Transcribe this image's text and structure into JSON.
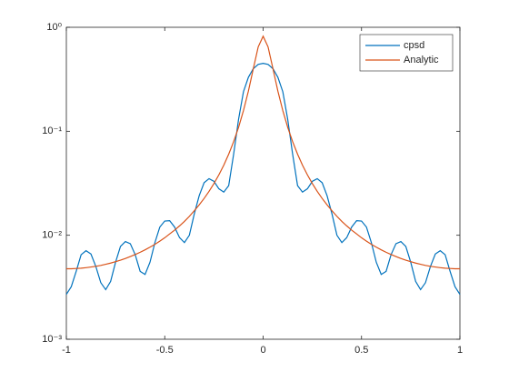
{
  "chart_data": {
    "type": "line",
    "yscale": "log",
    "grid": false,
    "legend": "northeast",
    "x": [
      -1,
      -0.975,
      -0.95,
      -0.925,
      -0.9,
      -0.875,
      -0.85,
      -0.825,
      -0.8,
      -0.775,
      -0.75,
      -0.725,
      -0.7,
      -0.675,
      -0.65,
      -0.625,
      -0.6,
      -0.575,
      -0.55,
      -0.525,
      -0.5,
      -0.475,
      -0.45,
      -0.425,
      -0.4,
      -0.375,
      -0.35,
      -0.325,
      -0.3,
      -0.275,
      -0.25,
      -0.225,
      -0.2,
      -0.175,
      -0.15,
      -0.125,
      -0.1,
      -0.075,
      -0.05,
      -0.025,
      0,
      0.025,
      0.05,
      0.075,
      0.1,
      0.125,
      0.15,
      0.175,
      0.2,
      0.225,
      0.25,
      0.275,
      0.3,
      0.325,
      0.35,
      0.375,
      0.4,
      0.425,
      0.45,
      0.475,
      0.5,
      0.525,
      0.55,
      0.575,
      0.6,
      0.625,
      0.65,
      0.675,
      0.7,
      0.725,
      0.75,
      0.775,
      0.8,
      0.825,
      0.85,
      0.875,
      0.9,
      0.925,
      0.95,
      0.975,
      1
    ],
    "series": [
      {
        "name": "cpsd",
        "color": "#0072bd",
        "values": [
          0.0027,
          0.0032,
          0.0045,
          0.0065,
          0.0071,
          0.0066,
          0.005,
          0.0035,
          0.003,
          0.0036,
          0.0055,
          0.0078,
          0.0087,
          0.0083,
          0.0065,
          0.0045,
          0.0042,
          0.0055,
          0.0085,
          0.012,
          0.0137,
          0.0138,
          0.012,
          0.0095,
          0.0085,
          0.01,
          0.016,
          0.024,
          0.032,
          0.035,
          0.033,
          0.028,
          0.026,
          0.03,
          0.06,
          0.13,
          0.24,
          0.33,
          0.4,
          0.44,
          0.45,
          0.44,
          0.4,
          0.33,
          0.24,
          0.13,
          0.06,
          0.03,
          0.026,
          0.028,
          0.033,
          0.035,
          0.032,
          0.024,
          0.016,
          0.01,
          0.0085,
          0.0095,
          0.012,
          0.0138,
          0.0137,
          0.012,
          0.0085,
          0.0055,
          0.0042,
          0.0045,
          0.0065,
          0.0083,
          0.0087,
          0.0078,
          0.0055,
          0.0036,
          0.003,
          0.0035,
          0.005,
          0.0066,
          0.0071,
          0.0065,
          0.0045,
          0.0032,
          0.0027
        ]
      },
      {
        "name": "Analytic",
        "color": "#d95319",
        "values": [
          0.00476,
          0.00476,
          0.00479,
          0.00482,
          0.00488,
          0.00495,
          0.00503,
          0.00513,
          0.00526,
          0.0054,
          0.00557,
          0.00576,
          0.00598,
          0.00624,
          0.00653,
          0.00686,
          0.00724,
          0.00768,
          0.00819,
          0.00878,
          0.00946,
          0.0103,
          0.0112,
          0.0123,
          0.0136,
          0.0152,
          0.0172,
          0.0196,
          0.0226,
          0.0264,
          0.0314,
          0.0381,
          0.0472,
          0.0602,
          0.0793,
          0.109,
          0.158,
          0.243,
          0.399,
          0.648,
          0.82,
          0.648,
          0.399,
          0.243,
          0.158,
          0.109,
          0.0793,
          0.0602,
          0.0472,
          0.0381,
          0.0314,
          0.0264,
          0.0226,
          0.0196,
          0.0172,
          0.0152,
          0.0136,
          0.0123,
          0.0112,
          0.0103,
          0.00946,
          0.00878,
          0.00819,
          0.00768,
          0.00724,
          0.00686,
          0.00653,
          0.00624,
          0.00598,
          0.00576,
          0.00557,
          0.0054,
          0.00526,
          0.00513,
          0.00503,
          0.00495,
          0.00488,
          0.00482,
          0.00479,
          0.00476,
          0.00476
        ]
      }
    ],
    "xlim": [
      -1,
      1
    ],
    "xticks": [
      -1,
      -0.5,
      0,
      0.5,
      1
    ],
    "ylim": [
      0.001,
      1
    ],
    "yticks": [
      {
        "value": 0.001,
        "label": "10⁻³"
      },
      {
        "value": 0.01,
        "label": "10⁻²"
      },
      {
        "value": 0.1,
        "label": "10⁻¹"
      },
      {
        "value": 1,
        "label": "10⁰"
      }
    ]
  }
}
